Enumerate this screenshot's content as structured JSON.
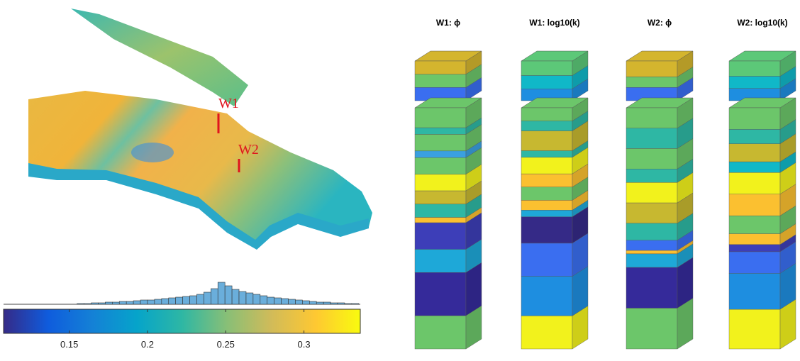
{
  "model": {
    "well_labels": [
      "W1",
      "W2"
    ]
  },
  "columns": {
    "titles": [
      "W1: ϕ",
      "W1: log10(k)",
      "W2: ϕ",
      "W2: log10(k)"
    ]
  },
  "chart_data": {
    "type": "histogram",
    "bins": [
      0.155,
      0.1595,
      0.164,
      0.1685,
      0.173,
      0.1775,
      0.182,
      0.1865,
      0.191,
      0.1955,
      0.2,
      0.2045,
      0.209,
      0.2135,
      0.218,
      0.2225,
      0.227,
      0.2315,
      0.236,
      0.2405,
      0.245,
      0.2495,
      0.254,
      0.2585,
      0.263,
      0.2675,
      0.272,
      0.2765,
      0.281,
      0.2855,
      0.29,
      0.2945,
      0.299,
      0.3035,
      0.308,
      0.3125,
      0.317,
      0.3215,
      0.326,
      0.3305,
      0.335
    ],
    "values": [
      1,
      1,
      2,
      2,
      3,
      3,
      4,
      4,
      5,
      6,
      6,
      7,
      8,
      9,
      10,
      11,
      12,
      14,
      17,
      22,
      31,
      26,
      21,
      18,
      16,
      14,
      12,
      10,
      9,
      8,
      7,
      6,
      5,
      4,
      3,
      3,
      2,
      2,
      1,
      1
    ],
    "color": "#6aaedb",
    "xlim": [
      0.108,
      0.336
    ],
    "xticks": [
      0.15,
      0.2,
      0.25,
      0.3
    ],
    "colormap": [
      "#352a87",
      "#0f5cdd",
      "#1481d6",
      "#06a4ca",
      "#2eb7a4",
      "#87bf77",
      "#d1bb59",
      "#fec832",
      "#f9fb0e"
    ]
  }
}
